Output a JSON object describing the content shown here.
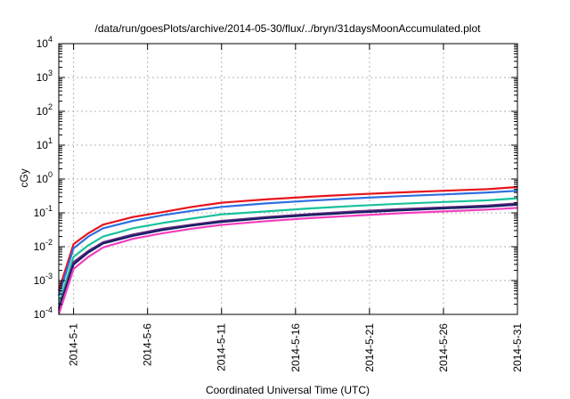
{
  "chart_data": {
    "type": "line",
    "title": "/data/run/goesPlots/archive/2014-05-30/flux/../bryn/31daysMoonAccumulated.plot",
    "xlabel": "Coordinated Universal Time (UTC)",
    "ylabel": "cGy",
    "x_scale": "date",
    "xlim": [
      "2014-04-30",
      "2014-05-31"
    ],
    "x_ticks": [
      "2014-5-1",
      "2014-5-6",
      "2014-5-11",
      "2014-5-16",
      "2014-5-21",
      "2014-5-26",
      "2014-5-31"
    ],
    "y_scale": "log",
    "ylim": [
      0.0001,
      10000
    ],
    "y_ticks": [
      {
        "base": "10",
        "exp": "-4"
      },
      {
        "base": "10",
        "exp": "-3"
      },
      {
        "base": "10",
        "exp": "-2"
      },
      {
        "base": "10",
        "exp": "-1"
      },
      {
        "base": "10",
        "exp": "0"
      },
      {
        "base": "10",
        "exp": "1"
      },
      {
        "base": "10",
        "exp": "2"
      },
      {
        "base": "10",
        "exp": "3"
      },
      {
        "base": "10",
        "exp": "4"
      }
    ],
    "grid": true,
    "x": [
      "2014-04-30",
      "2014-05-01",
      "2014-05-02",
      "2014-05-03",
      "2014-05-05",
      "2014-05-07",
      "2014-05-09",
      "2014-05-11",
      "2014-05-14",
      "2014-05-17",
      "2014-05-20",
      "2014-05-23",
      "2014-05-26",
      "2014-05-29",
      "2014-05-31"
    ],
    "series": [
      {
        "color": "#e8141b",
        "values": [
          0.0005,
          0.012,
          0.025,
          0.045,
          0.075,
          0.105,
          0.15,
          0.2,
          0.25,
          0.3,
          0.35,
          0.4,
          0.45,
          0.5,
          0.58
        ]
      },
      {
        "color": "#2e6fe0",
        "values": [
          0.00035,
          0.009,
          0.02,
          0.035,
          0.058,
          0.085,
          0.115,
          0.15,
          0.19,
          0.23,
          0.27,
          0.31,
          0.35,
          0.4,
          0.45
        ]
      },
      {
        "color": "#19c29b",
        "values": [
          0.0002,
          0.005,
          0.011,
          0.02,
          0.035,
          0.05,
          0.068,
          0.09,
          0.11,
          0.135,
          0.16,
          0.185,
          0.21,
          0.235,
          0.27
        ]
      },
      {
        "color": "#6b2b7d",
        "values": [
          0.00015,
          0.0035,
          0.0075,
          0.0135,
          0.023,
          0.034,
          0.045,
          0.058,
          0.075,
          0.092,
          0.11,
          0.128,
          0.145,
          0.165,
          0.19
        ]
      },
      {
        "color": "#141e66",
        "values": [
          0.00013,
          0.003,
          0.0068,
          0.0125,
          0.021,
          0.031,
          0.042,
          0.054,
          0.07,
          0.086,
          0.102,
          0.118,
          0.135,
          0.153,
          0.175
        ]
      },
      {
        "color": "#f23fbe",
        "values": [
          0.0001,
          0.0022,
          0.005,
          0.0095,
          0.017,
          0.025,
          0.034,
          0.044,
          0.057,
          0.07,
          0.083,
          0.097,
          0.11,
          0.125,
          0.14
        ]
      }
    ]
  }
}
